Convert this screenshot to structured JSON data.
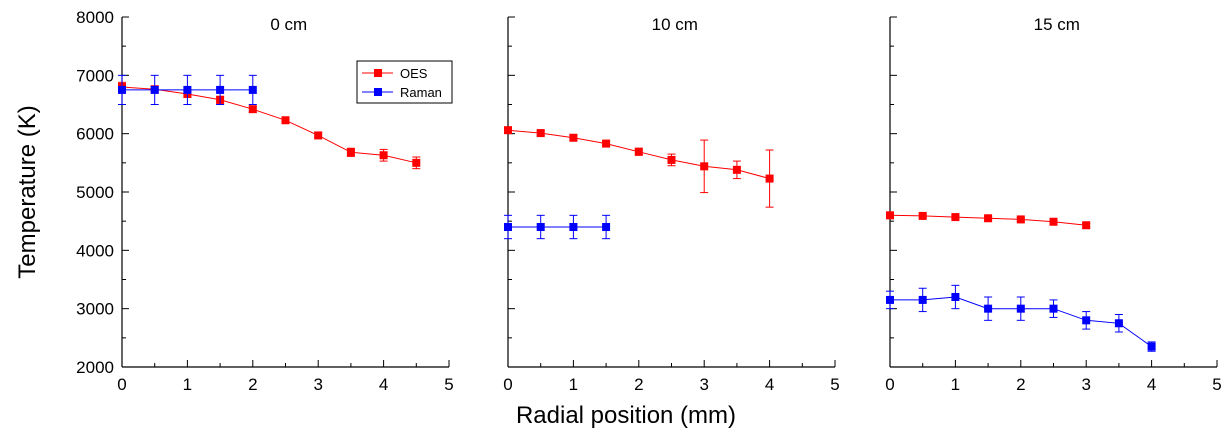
{
  "chart_data": {
    "type": "line",
    "ylabel": "Temperature (K)",
    "xlabel": "Radial position (mm)",
    "ylim": [
      2000,
      8000
    ],
    "xlim": [
      0,
      5
    ],
    "yticks": [
      2000,
      3000,
      4000,
      5000,
      6000,
      7000,
      8000
    ],
    "xticks": [
      0,
      1,
      2,
      3,
      4,
      5
    ],
    "legend": {
      "position": "top-right of first panel",
      "entries": [
        "OES",
        "Raman"
      ]
    },
    "colors": {
      "OES": "#ff0000",
      "Raman": "#0000ff"
    },
    "panels": [
      {
        "title": "0 cm",
        "series": [
          {
            "name": "OES",
            "x": [
              0,
              0.5,
              1,
              1.5,
              2,
              2.5,
              3,
              3.5,
              4,
              4.5
            ],
            "y": [
              6800,
              6760,
              6680,
              6580,
              6420,
              6230,
              5970,
              5680,
              5630,
              5500
            ],
            "err": [
              80,
              60,
              60,
              60,
              50,
              40,
              40,
              70,
              100,
              100
            ]
          },
          {
            "name": "Raman",
            "x": [
              0,
              0.5,
              1,
              1.5,
              2
            ],
            "y": [
              6750,
              6750,
              6750,
              6750,
              6750
            ],
            "err": [
              250,
              250,
              250,
              250,
              250
            ]
          }
        ]
      },
      {
        "title": "10 cm",
        "series": [
          {
            "name": "OES",
            "x": [
              0,
              0.5,
              1,
              1.5,
              2,
              2.5,
              3,
              3.5,
              4
            ],
            "y": [
              6060,
              6010,
              5930,
              5830,
              5690,
              5550,
              5440,
              5380,
              5230
            ],
            "err": [
              40,
              40,
              40,
              40,
              60,
              100,
              450,
              150,
              490
            ]
          },
          {
            "name": "Raman",
            "x": [
              0,
              0.5,
              1,
              1.5
            ],
            "y": [
              4400,
              4400,
              4400,
              4400
            ],
            "err": [
              200,
              200,
              200,
              200
            ]
          }
        ]
      },
      {
        "title": "15 cm",
        "series": [
          {
            "name": "OES",
            "x": [
              0,
              0.5,
              1,
              1.5,
              2,
              2.5,
              3
            ],
            "y": [
              4600,
              4590,
              4570,
              4550,
              4530,
              4490,
              4430
            ],
            "err": [
              30,
              30,
              30,
              30,
              30,
              30,
              30
            ]
          },
          {
            "name": "Raman",
            "x": [
              0,
              0.5,
              1,
              1.5,
              2,
              2.5,
              3,
              3.5,
              4
            ],
            "y": [
              3150,
              3150,
              3200,
              3000,
              3000,
              3000,
              2800,
              2750,
              2350
            ],
            "err": [
              150,
              200,
              200,
              200,
              200,
              150,
              150,
              150,
              80
            ]
          }
        ]
      }
    ]
  }
}
